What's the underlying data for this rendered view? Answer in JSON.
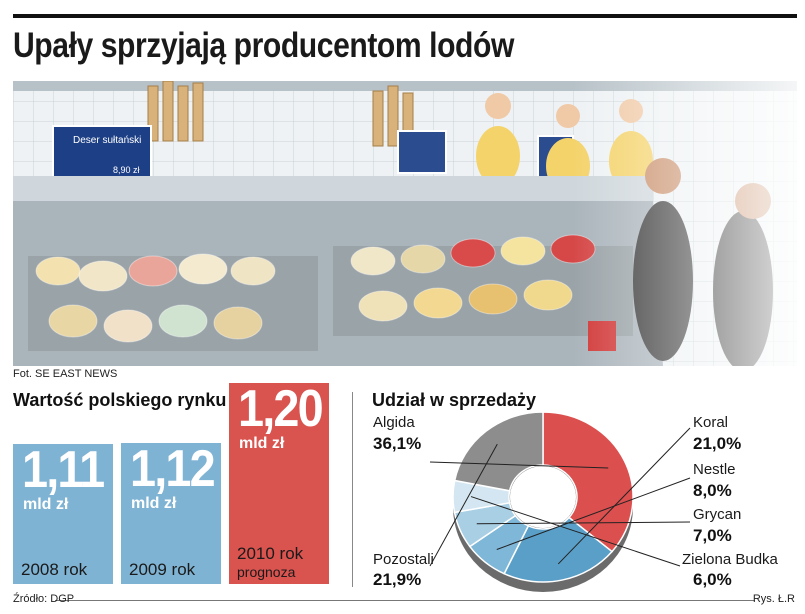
{
  "headline": "Upały sprzyjają producentom lodów",
  "photo": {
    "credit": "Fot. SE EAST NEWS",
    "sign_left_title": "Deser sułtański",
    "sign_left_price": "8,90 zł"
  },
  "colors": {
    "bar_blue": "#7fb3d3",
    "bar_red": "#d9534f",
    "slice_algida": "#dc4f4f",
    "slice_koral": "#5a9fc8",
    "slice_nestle": "#7fb7d8",
    "slice_grycan": "#a9cfe5",
    "slice_zielona": "#d3e6f1",
    "slice_pozostali": "#8d8d8d"
  },
  "source": "Źródło: DGP",
  "artist": "Rys. Ł.R",
  "chart_data": [
    {
      "type": "bar",
      "title": "Wartość polskiego rynku",
      "categories": [
        "2008 rok",
        "2009 rok",
        "2010 rok"
      ],
      "values": [
        1.11,
        1.12,
        1.2
      ],
      "value_labels": [
        "1,11",
        "1,12",
        "1,20"
      ],
      "unit": "mld zł",
      "notes": [
        "",
        "",
        "prognoza"
      ],
      "ylim": [
        0,
        1.3
      ]
    },
    {
      "type": "pie",
      "title": "Udział w sprzedaży",
      "labels": [
        "Algida",
        "Koral",
        "Nestle",
        "Grycan",
        "Zielona Budka",
        "Pozostali"
      ],
      "values": [
        36.1,
        21.0,
        8.0,
        7.0,
        6.0,
        21.9
      ],
      "value_labels": [
        "36,1%",
        "21,0%",
        "8,0%",
        "7,0%",
        "6,0%",
        "21,9%"
      ]
    }
  ]
}
